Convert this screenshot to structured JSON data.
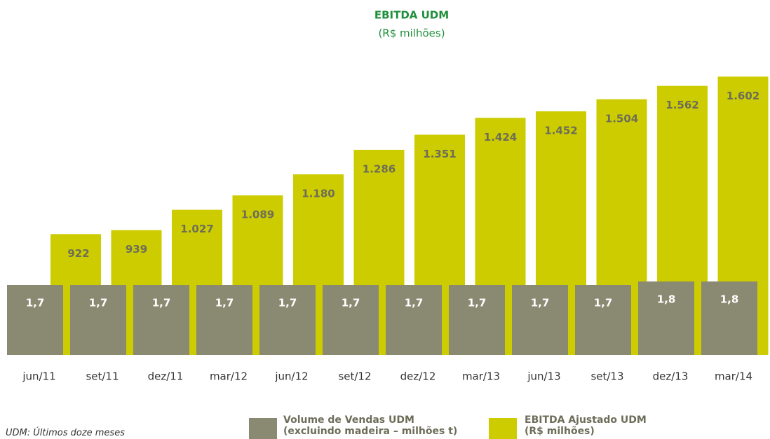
{
  "chart_data": {
    "type": "bar",
    "title": "EBITDA UDM",
    "subtitle": "(R$ milhões)",
    "categories": [
      "jun/11",
      "set/11",
      "dez/11",
      "mar/12",
      "jun/12",
      "set/12",
      "dez/12",
      "mar/13",
      "jun/13",
      "set/13",
      "dez/13",
      "mar/14"
    ],
    "series": [
      {
        "name": "Volume de Vendas UDM\n(excluindo madeira – milhões t)",
        "color": "#8a8a72",
        "axis": "y2",
        "values": [
          1.7,
          1.7,
          1.7,
          1.7,
          1.7,
          1.7,
          1.7,
          1.7,
          1.7,
          1.7,
          1.8,
          1.8
        ],
        "value_labels": [
          "1,7",
          "1,7",
          "1,7",
          "1,7",
          "1,7",
          "1,7",
          "1,7",
          "1,7",
          "1,7",
          "1,7",
          "1,8",
          "1,8"
        ]
      },
      {
        "name": "EBITDA Ajustado UDM\n(R$ milhões)",
        "color": "#cccc00",
        "values": [
          922,
          939,
          1027,
          1089,
          1180,
          1286,
          1351,
          1424,
          1452,
          1504,
          1562,
          1602
        ],
        "value_labels": [
          "922",
          "939",
          "1.027",
          "1.089",
          "1.180",
          "1.286",
          "1.351",
          "1.424",
          "1.452",
          "1.504",
          "1.562",
          "1.602"
        ]
      }
    ],
    "ylim": [
      400,
      1700
    ],
    "y2lim": [
      -0.3,
      8.3
    ],
    "footnote": "UDM: Últimos doze meses"
  }
}
